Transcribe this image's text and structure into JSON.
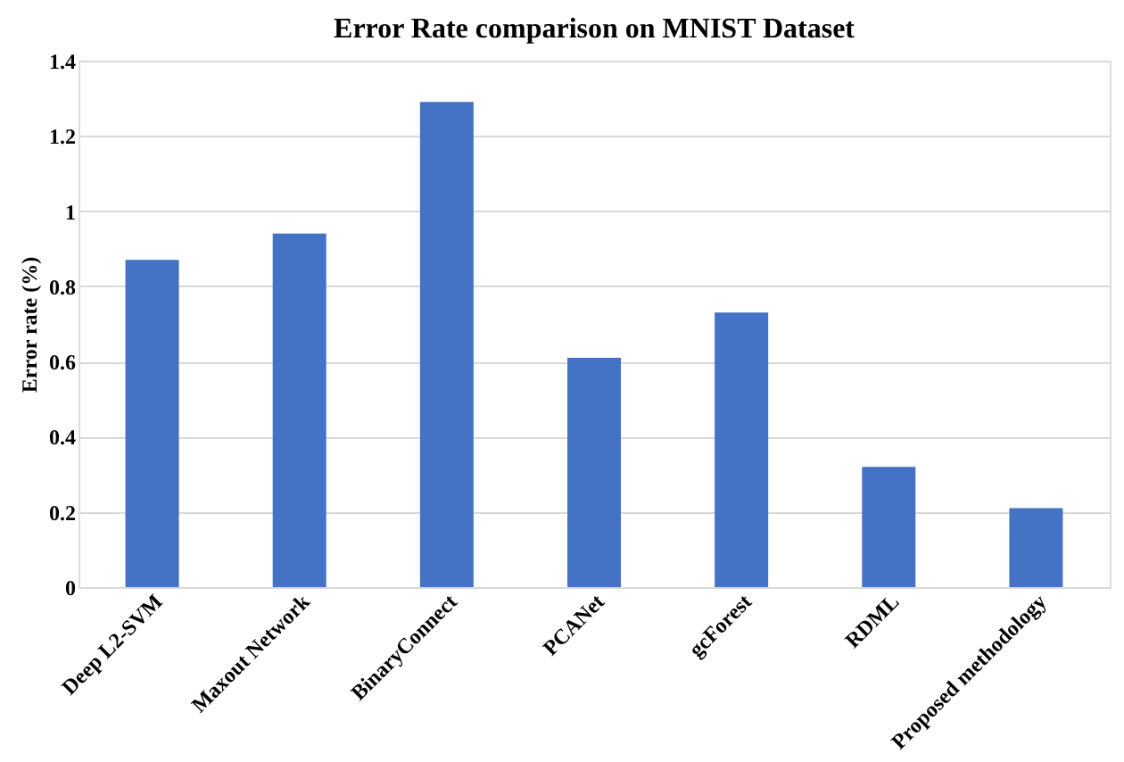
{
  "chart_data": {
    "type": "bar",
    "title": "Error Rate comparison on MNIST Dataset",
    "ylabel": "Error rate (%)",
    "categories": [
      "Deep L2-SVM",
      "Maxout Network",
      "BinaryConnect",
      "PCANet",
      "gcForest",
      "RDML",
      "Proposed methodology"
    ],
    "values": [
      0.87,
      0.94,
      1.29,
      0.61,
      0.73,
      0.32,
      0.21
    ],
    "color": "#4472c4",
    "ylim": [
      0,
      1.4
    ],
    "yticks": [
      0,
      0.2,
      0.4,
      0.6,
      0.8,
      1,
      1.2,
      1.4
    ],
    "grid": "y"
  }
}
